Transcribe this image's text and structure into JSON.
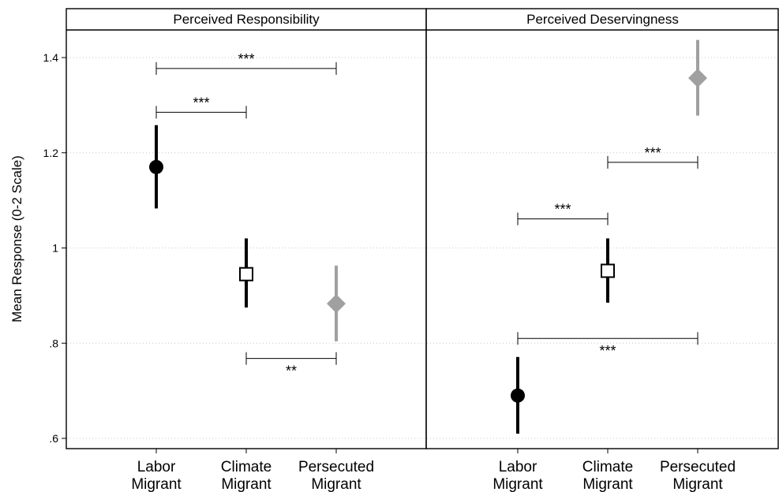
{
  "chart_data": {
    "type": "scatter",
    "ylabel": "Mean Response (0-2 Scale)",
    "ylim": [
      0.6,
      1.45
    ],
    "yticks": [
      {
        "value": 0.6,
        "label": ".6"
      },
      {
        "value": 0.8,
        "label": ".8"
      },
      {
        "value": 1.0,
        "label": "1"
      },
      {
        "value": 1.2,
        "label": "1.2"
      },
      {
        "value": 1.4,
        "label": "1.4"
      }
    ],
    "categories": [
      {
        "line1": "Labor",
        "line2": "Migrant"
      },
      {
        "line1": "Climate",
        "line2": "Migrant"
      },
      {
        "line1": "Persecuted",
        "line2": "Migrant"
      }
    ],
    "colors": {
      "Labor Migrant": "#000000",
      "Climate Migrant": "#000000",
      "Persecuted Migrant": "#a0a0a0"
    },
    "markers": {
      "Labor Migrant": "circle",
      "Climate Migrant": "open-square",
      "Persecuted Migrant": "diamond"
    },
    "grid": true,
    "panels": [
      {
        "title": "Perceived Responsibility",
        "points": [
          {
            "category": "Labor Migrant",
            "mean": 1.17,
            "ci": [
              1.083,
              1.258
            ]
          },
          {
            "category": "Climate Migrant",
            "mean": 0.945,
            "ci": [
              0.875,
              1.02
            ]
          },
          {
            "category": "Persecuted Migrant",
            "mean": 0.883,
            "ci": [
              0.804,
              0.963
            ]
          }
        ],
        "comparisons": [
          {
            "from": "Labor Migrant",
            "to": "Persecuted Migrant",
            "y": 1.377,
            "label": "***"
          },
          {
            "from": "Labor Migrant",
            "to": "Climate Migrant",
            "y": 1.285,
            "label": "***"
          },
          {
            "from": "Climate Migrant",
            "to": "Persecuted Migrant",
            "y": 0.768,
            "label": "**"
          }
        ]
      },
      {
        "title": "Perceived Deservingness",
        "points": [
          {
            "category": "Labor Migrant",
            "mean": 0.69,
            "ci": [
              0.61,
              0.771
            ]
          },
          {
            "category": "Climate Migrant",
            "mean": 0.952,
            "ci": [
              0.885,
              1.02
            ]
          },
          {
            "category": "Persecuted Migrant",
            "mean": 1.357,
            "ci": [
              1.278,
              1.437
            ]
          }
        ],
        "comparisons": [
          {
            "from": "Climate Migrant",
            "to": "Persecuted Migrant",
            "y": 1.18,
            "label": "***"
          },
          {
            "from": "Labor Migrant",
            "to": "Climate Migrant",
            "y": 1.061,
            "label": "***"
          },
          {
            "from": "Labor Migrant",
            "to": "Persecuted Migrant",
            "y": 0.81,
            "label": "***"
          }
        ]
      }
    ]
  }
}
